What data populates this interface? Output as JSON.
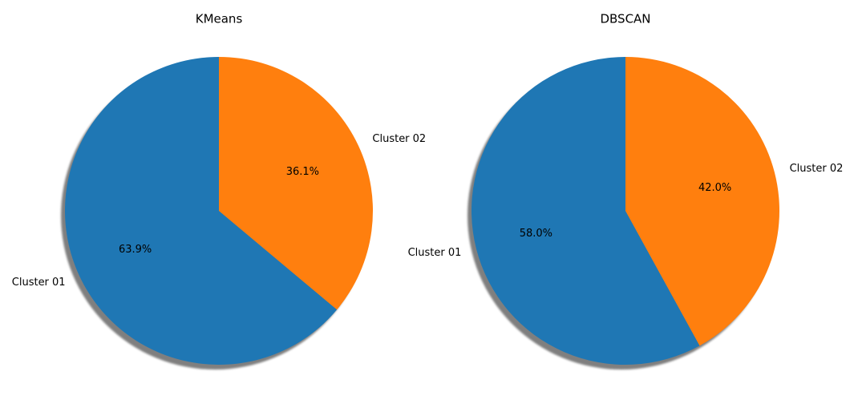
{
  "chart_data": [
    {
      "type": "pie",
      "title": "KMeans",
      "categories": [
        "Cluster 01",
        "Cluster 02"
      ],
      "values": [
        63.9,
        36.1
      ],
      "value_labels": [
        "63.9%",
        "36.1%"
      ],
      "colors": [
        "#1f77b4",
        "#ff7f0e"
      ],
      "start_angle_deg": 90,
      "direction": "counterclockwise",
      "shadow": true
    },
    {
      "type": "pie",
      "title": "DBSCAN",
      "categories": [
        "Cluster 01",
        "Cluster 02"
      ],
      "values": [
        58.0,
        42.0
      ],
      "value_labels": [
        "58.0%",
        "42.0%"
      ],
      "colors": [
        "#1f77b4",
        "#ff7f0e"
      ],
      "start_angle_deg": 90,
      "direction": "counterclockwise",
      "shadow": true
    }
  ]
}
